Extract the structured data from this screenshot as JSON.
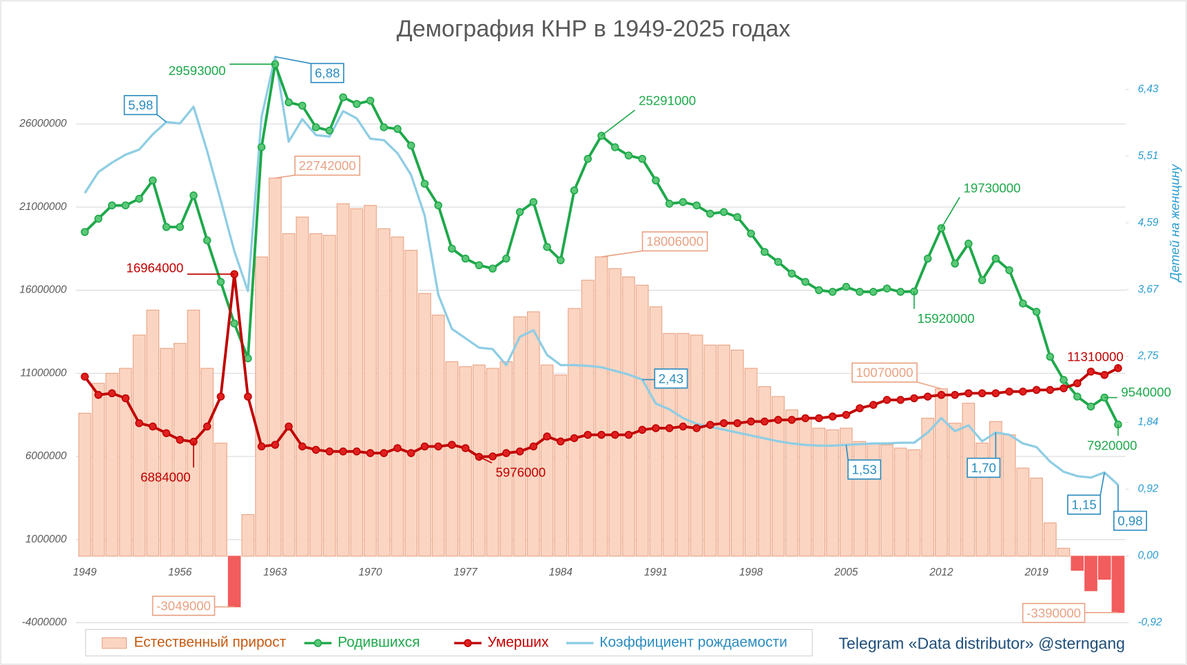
{
  "chart_data": {
    "type": "bar",
    "title": "Демография КНР в 1949-2025 годах",
    "y2label": "Детей на женщину",
    "source": "Telegram «Data distributor» @sterngang",
    "categories": [
      "1949",
      null,
      null,
      null,
      null,
      null,
      null,
      "1956",
      null,
      null,
      null,
      null,
      null,
      null,
      "1963",
      null,
      null,
      null,
      null,
      null,
      null,
      "1970",
      null,
      null,
      null,
      null,
      null,
      null,
      "1977",
      null,
      null,
      null,
      null,
      null,
      null,
      "1984",
      null,
      null,
      null,
      null,
      null,
      null,
      "1991",
      null,
      null,
      null,
      null,
      null,
      null,
      "1998",
      null,
      null,
      null,
      null,
      null,
      null,
      "2005",
      null,
      null,
      null,
      null,
      null,
      null,
      "2012",
      null,
      null,
      null,
      null,
      null,
      null,
      "2019",
      null,
      null,
      null,
      null,
      null,
      null
    ],
    "ylim": [
      -4000000,
      30000000
    ],
    "yticks": [
      -4000000,
      1000000,
      6000000,
      11000000,
      16000000,
      21000000,
      26000000
    ],
    "y2lim": [
      -0.92,
      6.87
    ],
    "y2ticks": [
      {
        "value": -0.92,
        "label": "-0,92"
      },
      {
        "value": 0,
        "label": "0,00"
      },
      {
        "value": 0.92,
        "label": "0,92"
      },
      {
        "value": 1.84,
        "label": "1,84"
      },
      {
        "value": 2.75,
        "label": "2,75"
      },
      {
        "value": 3.67,
        "label": "3,67"
      },
      {
        "value": 4.59,
        "label": "4,59"
      },
      {
        "value": 5.51,
        "label": "5,51"
      },
      {
        "value": 6.43,
        "label": "6,43"
      }
    ],
    "grid": true,
    "series": [
      {
        "name": "Естественный прирост",
        "type": "bar",
        "color": "#fbd5c2",
        "edge_color": "#e9a283",
        "negative_color": "#f25c5c",
        "values": [
          8600000,
          10400000,
          11000000,
          11300000,
          13300000,
          14800000,
          12500000,
          12800000,
          14800000,
          11300000,
          6800000,
          -3049000,
          2500000,
          18000000,
          22742000,
          19400000,
          20400000,
          19400000,
          19300000,
          21200000,
          20900000,
          21100000,
          19700000,
          19200000,
          18400000,
          15800000,
          14500000,
          11700000,
          11400000,
          11500000,
          11300000,
          11700000,
          14400000,
          14700000,
          11500000,
          10900000,
          14900000,
          16600000,
          18006000,
          17300000,
          16800000,
          16300000,
          15000000,
          13400000,
          13400000,
          13300000,
          12700000,
          12700000,
          12400000,
          11300000,
          10200000,
          9600000,
          8800000,
          8300000,
          7700000,
          7600000,
          7700000,
          6900000,
          6800000,
          6700000,
          6500000,
          6400000,
          8300000,
          10070000,
          8000000,
          9200000,
          6800000,
          8100000,
          7300000,
          5300000,
          4700000,
          2000000,
          480000,
          -850000,
          -2080000,
          -1390000,
          -3390000
        ],
        "value_labels": [
          null,
          null,
          null,
          null,
          null,
          null,
          null,
          null,
          null,
          null,
          null,
          "-3049000",
          null,
          null,
          "22742000",
          null,
          null,
          null,
          null,
          null,
          null,
          null,
          null,
          null,
          null,
          null,
          null,
          null,
          null,
          null,
          null,
          null,
          null,
          null,
          null,
          null,
          null,
          null,
          "18006000",
          null,
          null,
          null,
          null,
          null,
          null,
          null,
          null,
          null,
          null,
          null,
          null,
          null,
          null,
          null,
          null,
          null,
          null,
          null,
          null,
          null,
          null,
          null,
          null,
          "10070000",
          null,
          null,
          null,
          null,
          null,
          null,
          null,
          null,
          null,
          null,
          null,
          null,
          "-3390000"
        ]
      },
      {
        "name": "Родившихся",
        "type": "line",
        "markers": true,
        "color": "#1ea84a",
        "marker_color": "#5cc878",
        "values": [
          19500000,
          20300000,
          21100000,
          21100000,
          21500000,
          22600000,
          19800000,
          19800000,
          21700000,
          19000000,
          16500000,
          14000000,
          11900000,
          24600000,
          29593000,
          27300000,
          27100000,
          25800000,
          25600000,
          27600000,
          27200000,
          27400000,
          25800000,
          25700000,
          24700000,
          22400000,
          21100000,
          18500000,
          17900000,
          17500000,
          17300000,
          17900000,
          20700000,
          21300000,
          18600000,
          17800000,
          22000000,
          23900000,
          25291000,
          24600000,
          24100000,
          23900000,
          22600000,
          21200000,
          21300000,
          21100000,
          20600000,
          20700000,
          20400000,
          19400000,
          18300000,
          17700000,
          17000000,
          16500000,
          16000000,
          15900000,
          16200000,
          15900000,
          15900000,
          16100000,
          15900000,
          15920000,
          17900000,
          19730000,
          17600000,
          18800000,
          16600000,
          17900000,
          17200000,
          15200000,
          14700000,
          12000000,
          10600000,
          9600000,
          9000000,
          9540000,
          7920000
        ],
        "value_labels": [
          null,
          null,
          null,
          null,
          null,
          null,
          null,
          null,
          null,
          null,
          null,
          null,
          null,
          null,
          "29593000",
          null,
          null,
          null,
          null,
          null,
          null,
          null,
          null,
          null,
          null,
          null,
          null,
          null,
          null,
          null,
          null,
          null,
          null,
          null,
          null,
          null,
          null,
          null,
          "25291000",
          null,
          null,
          null,
          null,
          null,
          null,
          null,
          null,
          null,
          null,
          null,
          null,
          null,
          null,
          null,
          null,
          null,
          null,
          null,
          null,
          null,
          null,
          "15920000",
          null,
          "19730000",
          null,
          null,
          null,
          null,
          null,
          null,
          null,
          null,
          null,
          null,
          null,
          "9540000",
          "7920000"
        ]
      },
      {
        "name": "Умерших",
        "type": "line",
        "markers": true,
        "color": "#c00000",
        "marker_color": "#e02020",
        "values": [
          10800000,
          9700000,
          9800000,
          9500000,
          8000000,
          7800000,
          7400000,
          7000000,
          6884000,
          7800000,
          9600000,
          16964000,
          9600000,
          6600000,
          6700000,
          7800000,
          6600000,
          6400000,
          6300000,
          6300000,
          6300000,
          6200000,
          6200000,
          6500000,
          6200000,
          6600000,
          6600000,
          6700000,
          6500000,
          5976000,
          6000000,
          6200000,
          6300000,
          6600000,
          7200000,
          6900000,
          7100000,
          7300000,
          7300000,
          7300000,
          7300000,
          7600000,
          7700000,
          7700000,
          7800000,
          7700000,
          7900000,
          8000000,
          8000000,
          8100000,
          8100000,
          8200000,
          8200000,
          8300000,
          8300000,
          8400000,
          8500000,
          8900000,
          9100000,
          9400000,
          9400000,
          9500000,
          9600000,
          9700000,
          9700000,
          9800000,
          9800000,
          9800000,
          9900000,
          9900000,
          10000000,
          10000000,
          10100000,
          10400000,
          11100000,
          10900000,
          11310000
        ],
        "value_labels": [
          null,
          null,
          null,
          null,
          null,
          null,
          null,
          null,
          "6884000",
          null,
          null,
          "16964000",
          null,
          null,
          null,
          null,
          null,
          null,
          null,
          null,
          null,
          null,
          null,
          null,
          null,
          null,
          null,
          null,
          null,
          "5976000",
          null,
          null,
          null,
          null,
          null,
          null,
          null,
          null,
          null,
          null,
          null,
          null,
          null,
          null,
          null,
          null,
          null,
          null,
          null,
          null,
          null,
          null,
          null,
          null,
          null,
          null,
          null,
          null,
          null,
          null,
          null,
          null,
          null,
          null,
          null,
          null,
          null,
          null,
          null,
          null,
          null,
          null,
          null,
          null,
          null,
          null,
          "11310000"
        ]
      },
      {
        "name": "Коэффициент рождаемости",
        "type": "line",
        "markers": false,
        "axis": "y2",
        "color": "#8fcde3",
        "label_color": "#2b8cbf",
        "values": [
          5.0,
          5.29,
          5.42,
          5.53,
          5.6,
          5.81,
          5.98,
          5.96,
          6.19,
          5.58,
          4.9,
          4.2,
          3.65,
          6.05,
          6.88,
          5.71,
          6.02,
          5.8,
          5.78,
          6.13,
          6.03,
          5.75,
          5.73,
          5.55,
          5.25,
          4.69,
          3.6,
          3.13,
          3.0,
          2.87,
          2.85,
          2.63,
          3.02,
          3.11,
          2.77,
          2.63,
          2.63,
          2.62,
          2.6,
          2.55,
          2.5,
          2.43,
          2.1,
          2.02,
          1.9,
          1.82,
          1.78,
          1.74,
          1.7,
          1.66,
          1.62,
          1.58,
          1.55,
          1.53,
          1.52,
          1.52,
          1.53,
          1.54,
          1.55,
          1.55,
          1.56,
          1.56,
          1.7,
          1.9,
          1.72,
          1.8,
          1.58,
          1.7,
          1.67,
          1.55,
          1.5,
          1.3,
          1.16,
          1.1,
          1.08,
          1.15,
          0.98
        ],
        "value_labels": [
          null,
          null,
          null,
          null,
          null,
          null,
          "5,98",
          null,
          null,
          null,
          null,
          null,
          null,
          null,
          "6,88",
          null,
          null,
          null,
          null,
          null,
          null,
          null,
          null,
          null,
          null,
          null,
          null,
          null,
          null,
          null,
          null,
          null,
          null,
          null,
          null,
          null,
          null,
          null,
          null,
          null,
          null,
          "2,43",
          null,
          null,
          null,
          null,
          null,
          null,
          null,
          null,
          null,
          null,
          null,
          null,
          null,
          null,
          "1,53",
          null,
          null,
          null,
          null,
          null,
          null,
          null,
          null,
          null,
          null,
          "1,70",
          null,
          null,
          null,
          null,
          null,
          null,
          null,
          "1,15",
          "0,98"
        ]
      }
    ]
  }
}
